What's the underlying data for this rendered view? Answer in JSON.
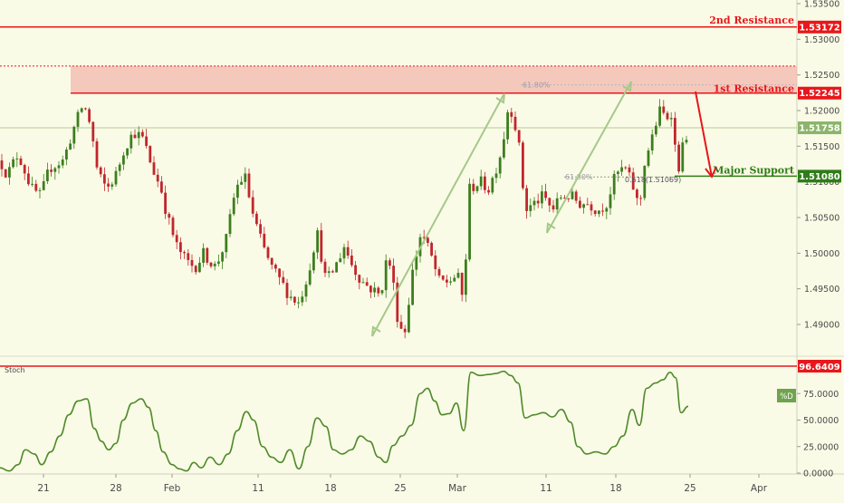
{
  "chart_data": [
    {
      "type": "candlestick",
      "instrument_note": "",
      "x_ticks": [
        "21",
        "28",
        "Feb",
        "11",
        "18",
        "25",
        "Mar",
        "11",
        "18",
        "25",
        "Apr"
      ],
      "y_ticks": [
        "1.53500",
        "1.53000",
        "1.52500",
        "1.52000",
        "1.51500",
        "1.51000",
        "1.50500",
        "1.50000",
        "1.49500",
        "1.49000"
      ],
      "ylim": [
        1.487,
        1.5375
      ],
      "price_path": [
        [
          0,
          1.513
        ],
        [
          8,
          1.511
        ],
        [
          20,
          1.514
        ],
        [
          35,
          1.509
        ],
        [
          45,
          1.508
        ],
        [
          55,
          1.512
        ],
        [
          70,
          1.513
        ],
        [
          80,
          1.517
        ],
        [
          92,
          1.521
        ],
        [
          100,
          1.518
        ],
        [
          108,
          1.511
        ],
        [
          118,
          1.509
        ],
        [
          128,
          1.511
        ],
        [
          138,
          1.515
        ],
        [
          148,
          1.517
        ],
        [
          158,
          1.516
        ],
        [
          168,
          1.512
        ],
        [
          178,
          1.509
        ],
        [
          185,
          1.505
        ],
        [
          195,
          1.501
        ],
        [
          205,
          1.499
        ],
        [
          215,
          1.498
        ],
        [
          225,
          1.5
        ],
        [
          238,
          1.498
        ],
        [
          250,
          1.502
        ],
        [
          260,
          1.509
        ],
        [
          270,
          1.511
        ],
        [
          280,
          1.505
        ],
        [
          290,
          1.501
        ],
        [
          300,
          1.498
        ],
        [
          310,
          1.496
        ],
        [
          320,
          1.494
        ],
        [
          330,
          1.493
        ],
        [
          340,
          1.497
        ],
        [
          350,
          1.503
        ],
        [
          360,
          1.496
        ],
        [
          370,
          1.498
        ],
        [
          380,
          1.501
        ],
        [
          390,
          1.498
        ],
        [
          400,
          1.496
        ],
        [
          410,
          1.495
        ],
        [
          420,
          1.494
        ],
        [
          428,
          1.5
        ],
        [
          434,
          1.496
        ],
        [
          440,
          1.49
        ],
        [
          447,
          1.489
        ],
        [
          455,
          1.497
        ],
        [
          465,
          1.503
        ],
        [
          475,
          1.5
        ],
        [
          485,
          1.496
        ],
        [
          495,
          1.496
        ],
        [
          505,
          1.497
        ],
        [
          512,
          1.493
        ],
        [
          518,
          1.509
        ],
        [
          530,
          1.51
        ],
        [
          540,
          1.509
        ],
        [
          548,
          1.512
        ],
        [
          555,
          1.515
        ],
        [
          560,
          1.52
        ],
        [
          566,
          1.52
        ],
        [
          573,
          1.515
        ],
        [
          580,
          1.506
        ],
        [
          590,
          1.507
        ],
        [
          600,
          1.508
        ],
        [
          610,
          1.506
        ],
        [
          620,
          1.508
        ],
        [
          630,
          1.508
        ],
        [
          640,
          1.507
        ],
        [
          650,
          1.507
        ],
        [
          660,
          1.506
        ],
        [
          670,
          1.507
        ],
        [
          680,
          1.511
        ],
        [
          690,
          1.512
        ],
        [
          700,
          1.509
        ],
        [
          706,
          1.506
        ],
        [
          712,
          1.513
        ],
        [
          720,
          1.516
        ],
        [
          728,
          1.52
        ],
        [
          736,
          1.519
        ],
        [
          742,
          1.52
        ],
        [
          748,
          1.511
        ],
        [
          752,
          1.514
        ],
        [
          760,
          1.5175
        ]
      ],
      "resistance_2": "1.53172",
      "resistance_1": "1.52245",
      "current_price": "1.51758",
      "major_support": "1.51080",
      "resistance_zone": [
        1.52245,
        1.52625
      ],
      "fib_upper": {
        "ratio": "61.80%",
        "value": 1.5236
      },
      "fib_lower": {
        "ratio": "61.80%",
        "alt_label": "0.618(1.51069)",
        "value": 1.51069
      },
      "labels": {
        "resistance_2": "2nd Resistance",
        "resistance_1": "1st Resistance",
        "support": "Major Support"
      },
      "colors": {
        "resistance": "#e8171b",
        "support": "#2f7d18",
        "bull_candle": "#3d7e1f",
        "bear_candle": "#c0272d",
        "price_tag": "#8cb46b",
        "zone": "#f3b7ad",
        "arrow_green": "#a5c98a",
        "background": "#fafbe6"
      }
    },
    {
      "type": "line",
      "name": "Stoch",
      "legend_tag": "%D",
      "y_ticks": [
        "75.0000",
        "50.0000",
        "25.0000",
        "0.0000"
      ],
      "level_line": "96.6409",
      "ylim": [
        0,
        100
      ],
      "path": [
        [
          0,
          5
        ],
        [
          10,
          2
        ],
        [
          20,
          8
        ],
        [
          28,
          22
        ],
        [
          38,
          18
        ],
        [
          46,
          8
        ],
        [
          56,
          20
        ],
        [
          66,
          35
        ],
        [
          76,
          55
        ],
        [
          86,
          68
        ],
        [
          96,
          70
        ],
        [
          104,
          42
        ],
        [
          112,
          30
        ],
        [
          120,
          22
        ],
        [
          128,
          28
        ],
        [
          136,
          50
        ],
        [
          146,
          66
        ],
        [
          156,
          70
        ],
        [
          164,
          62
        ],
        [
          172,
          40
        ],
        [
          180,
          20
        ],
        [
          190,
          8
        ],
        [
          198,
          4
        ],
        [
          206,
          2
        ],
        [
          214,
          10
        ],
        [
          222,
          5
        ],
        [
          232,
          15
        ],
        [
          242,
          8
        ],
        [
          252,
          18
        ],
        [
          262,
          40
        ],
        [
          272,
          58
        ],
        [
          280,
          50
        ],
        [
          290,
          25
        ],
        [
          300,
          15
        ],
        [
          310,
          10
        ],
        [
          320,
          22
        ],
        [
          330,
          4
        ],
        [
          340,
          25
        ],
        [
          350,
          52
        ],
        [
          360,
          44
        ],
        [
          368,
          22
        ],
        [
          378,
          18
        ],
        [
          388,
          22
        ],
        [
          398,
          35
        ],
        [
          408,
          30
        ],
        [
          418,
          15
        ],
        [
          426,
          10
        ],
        [
          434,
          26
        ],
        [
          444,
          35
        ],
        [
          454,
          45
        ],
        [
          464,
          75
        ],
        [
          472,
          80
        ],
        [
          480,
          68
        ],
        [
          488,
          55
        ],
        [
          496,
          56
        ],
        [
          504,
          66
        ],
        [
          512,
          40
        ],
        [
          520,
          95
        ],
        [
          530,
          92
        ],
        [
          540,
          93
        ],
        [
          548,
          94
        ],
        [
          556,
          96
        ],
        [
          564,
          92
        ],
        [
          572,
          85
        ],
        [
          580,
          52
        ],
        [
          590,
          55
        ],
        [
          600,
          57
        ],
        [
          610,
          53
        ],
        [
          620,
          60
        ],
        [
          630,
          48
        ],
        [
          638,
          25
        ],
        [
          648,
          18
        ],
        [
          658,
          20
        ],
        [
          668,
          18
        ],
        [
          678,
          25
        ],
        [
          688,
          35
        ],
        [
          698,
          60
        ],
        [
          706,
          45
        ],
        [
          714,
          80
        ],
        [
          724,
          85
        ],
        [
          732,
          88
        ],
        [
          740,
          95
        ],
        [
          746,
          90
        ],
        [
          752,
          57
        ],
        [
          760,
          63
        ]
      ]
    }
  ]
}
